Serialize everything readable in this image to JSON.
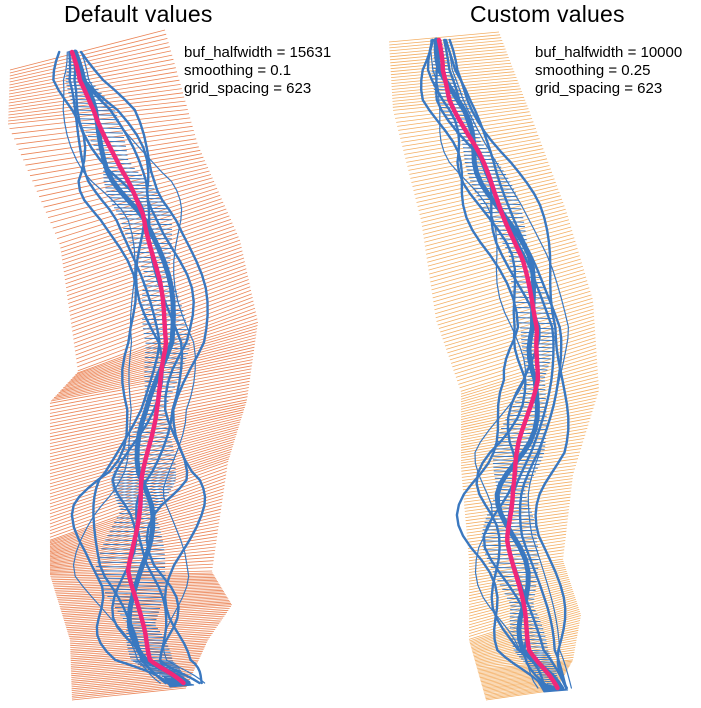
{
  "panels": [
    {
      "id": "default",
      "title": "Default values",
      "params": [
        {
          "name": "buf_halfwidth",
          "value": "15631",
          "text": "buf_halfwidth = 15631"
        },
        {
          "name": "smoothing",
          "value": "0.1",
          "text": "smoothing = 0.1"
        },
        {
          "name": "grid_spacing",
          "value": "623",
          "text": "grid_spacing = 623"
        }
      ],
      "transect_color": "#e8703a",
      "transect_count": 230
    },
    {
      "id": "custom",
      "title": "Custom values",
      "params": [
        {
          "name": "buf_halfwidth",
          "value": "10000",
          "text": "buf_halfwidth = 10000"
        },
        {
          "name": "smoothing",
          "value": "0.25",
          "text": "smoothing = 0.25"
        },
        {
          "name": "grid_spacing",
          "value": "623",
          "text": "grid_spacing = 623"
        }
      ],
      "transect_color": "#f2a24a",
      "transect_count": 230
    }
  ],
  "colors": {
    "river": "#3a78c0",
    "centerline": "#f0287a",
    "background": "#ffffff"
  }
}
